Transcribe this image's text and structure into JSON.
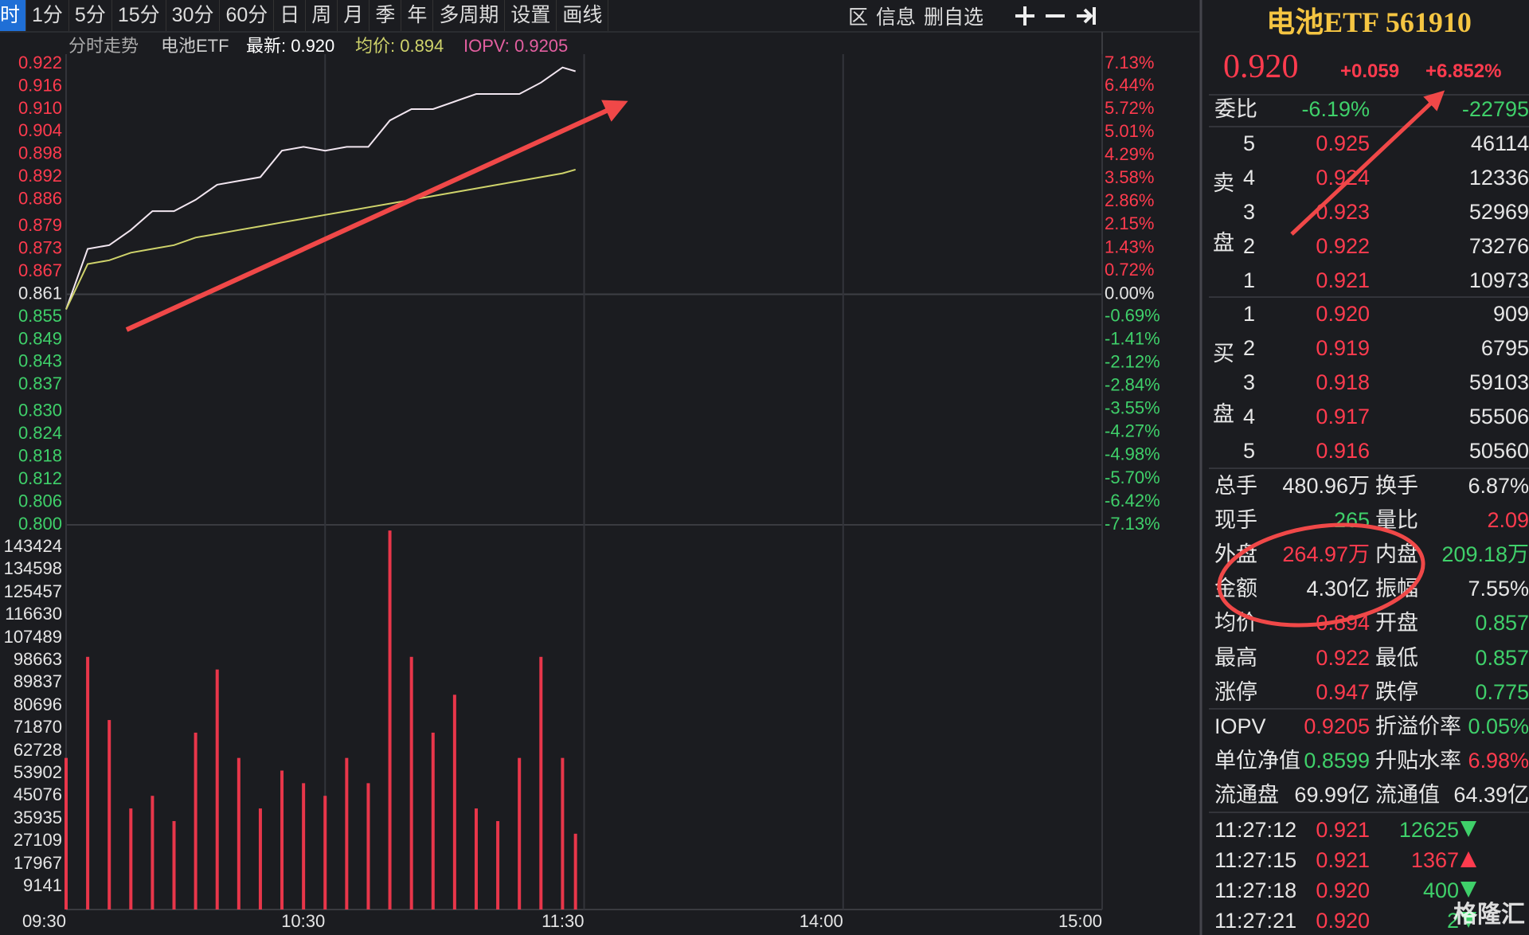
{
  "toolbar": {
    "left": [
      "时",
      "1分",
      "5分",
      "15分",
      "30分",
      "60分",
      "日",
      "周",
      "月",
      "季",
      "年",
      "多周期",
      "设置",
      "画线"
    ],
    "right": [
      "区",
      "信息",
      "删自选"
    ]
  },
  "chart_data": [
    {
      "type": "line",
      "title": "分时走势",
      "subtitle": "电池ETF",
      "annotations": [
        "IOPV: 0.9205"
      ],
      "x": [
        "09:30",
        "09:35",
        "09:40",
        "09:45",
        "09:50",
        "09:55",
        "10:00",
        "10:05",
        "10:10",
        "10:15",
        "10:20",
        "10:25",
        "10:30",
        "10:35",
        "10:40",
        "10:45",
        "10:50",
        "10:55",
        "11:00",
        "11:05",
        "11:10",
        "11:15",
        "11:20",
        "11:25",
        "11:28"
      ],
      "series": [
        {
          "name": "最新: 0.920",
          "color": "#f2e6f0",
          "values": [
            0.857,
            0.873,
            0.874,
            0.878,
            0.883,
            0.883,
            0.886,
            0.89,
            0.891,
            0.892,
            0.899,
            0.9,
            0.899,
            0.9,
            0.9,
            0.907,
            0.91,
            0.91,
            0.912,
            0.914,
            0.914,
            0.914,
            0.917,
            0.921,
            0.92
          ]
        },
        {
          "name": "均价: 0.894",
          "color": "#cfd36b",
          "values": [
            0.857,
            0.869,
            0.87,
            0.872,
            0.873,
            0.874,
            0.876,
            0.877,
            0.878,
            0.879,
            0.88,
            0.881,
            0.882,
            0.883,
            0.884,
            0.885,
            0.886,
            0.887,
            0.888,
            0.889,
            0.89,
            0.891,
            0.892,
            0.893,
            0.894
          ]
        }
      ],
      "xlim": [
        "09:30",
        "15:00"
      ],
      "grid": true,
      "ylim": [
        0.8,
        0.922
      ],
      "yticks": [
        {
          "value": 0.922,
          "label": "0.922"
        },
        {
          "value": 0.916,
          "label": "0.916"
        },
        {
          "value": 0.91,
          "label": "0.910"
        },
        {
          "value": 0.904,
          "label": "0.904"
        },
        {
          "value": 0.898,
          "label": "0.898"
        },
        {
          "value": 0.892,
          "label": "0.892"
        },
        {
          "value": 0.886,
          "label": "0.886"
        },
        {
          "value": 0.879,
          "label": "0.879"
        },
        {
          "value": 0.873,
          "label": "0.873"
        },
        {
          "value": 0.867,
          "label": "0.867"
        },
        {
          "value": 0.861,
          "label": "0.861"
        },
        {
          "value": 0.855,
          "label": "0.855"
        },
        {
          "value": 0.849,
          "label": "0.849"
        },
        {
          "value": 0.843,
          "label": "0.843"
        },
        {
          "value": 0.837,
          "label": "0.837"
        },
        {
          "value": 0.83,
          "label": "0.830"
        },
        {
          "value": 0.824,
          "label": "0.824"
        },
        {
          "value": 0.818,
          "label": "0.818"
        },
        {
          "value": 0.812,
          "label": "0.812"
        },
        {
          "value": 0.806,
          "label": "0.806"
        },
        {
          "value": 0.8,
          "label": "0.800"
        }
      ],
      "y2lim": [
        -7.13,
        7.13
      ],
      "y2ticks": [
        {
          "value": 7.13,
          "label": "7.13%"
        },
        {
          "value": 6.44,
          "label": "6.44%"
        },
        {
          "value": 5.72,
          "label": "5.72%"
        },
        {
          "value": 5.01,
          "label": "5.01%"
        },
        {
          "value": 4.29,
          "label": "4.29%"
        },
        {
          "value": 3.58,
          "label": "3.58%"
        },
        {
          "value": 2.86,
          "label": "2.86%"
        },
        {
          "value": 2.15,
          "label": "2.15%"
        },
        {
          "value": 1.43,
          "label": "1.43%"
        },
        {
          "value": 0.72,
          "label": "0.72%"
        },
        {
          "value": 0,
          "label": "0.00%"
        },
        {
          "value": -0.69,
          "label": "-0.69%"
        },
        {
          "value": -1.41,
          "label": "-1.41%"
        },
        {
          "value": -2.12,
          "label": "-2.12%"
        },
        {
          "value": -2.84,
          "label": "-2.84%"
        },
        {
          "value": -3.55,
          "label": "-3.55%"
        },
        {
          "value": -4.27,
          "label": "-4.27%"
        },
        {
          "value": -4.98,
          "label": "-4.98%"
        },
        {
          "value": -5.7,
          "label": "-5.70%"
        },
        {
          "value": -6.42,
          "label": "-6.42%"
        },
        {
          "value": -7.13,
          "label": "-7.13%"
        }
      ]
    },
    {
      "type": "bar",
      "color": "#e8364a",
      "x": [
        "09:30",
        "09:35",
        "09:40",
        "09:45",
        "09:50",
        "09:55",
        "10:00",
        "10:05",
        "10:10",
        "10:15",
        "10:20",
        "10:25",
        "10:30",
        "10:35",
        "10:40",
        "10:45",
        "10:50",
        "10:55",
        "11:00",
        "11:05",
        "11:10",
        "11:15",
        "11:20",
        "11:25",
        "11:28"
      ],
      "values": [
        60000,
        100000,
        75000,
        40000,
        45000,
        35000,
        70000,
        95000,
        60000,
        40000,
        55000,
        50000,
        45000,
        60000,
        50000,
        150000,
        100000,
        70000,
        85000,
        40000,
        35000,
        60000,
        100000,
        60000,
        30000
      ],
      "xlim": [
        "09:30",
        "15:00"
      ],
      "xticks": [
        "09:30",
        "10:30",
        "11:30",
        "14:00",
        "15:00"
      ],
      "ylim": [
        0,
        152250
      ],
      "yticks": [
        143424,
        134598,
        125457,
        116630,
        107489,
        98663,
        89837,
        80696,
        71870,
        62728,
        53902,
        45076,
        35935,
        27109,
        17967,
        9141
      ]
    }
  ],
  "quote": {
    "name": "电池ETF 561910",
    "price": "0.920",
    "change": "+0.059",
    "change_pct": "+6.852%",
    "ratio": [
      "委比",
      "-6.19%",
      "-22795"
    ],
    "sell_side": [
      "卖",
      "盘"
    ],
    "buy_side": [
      "买",
      "盘"
    ],
    "asks": [
      [
        "5",
        "0.925",
        "46114"
      ],
      [
        "4",
        "0.924",
        "12336"
      ],
      [
        "3",
        "0.923",
        "52969"
      ],
      [
        "2",
        "0.922",
        "73276"
      ],
      [
        "1",
        "0.921",
        "10973"
      ]
    ],
    "bids": [
      [
        "1",
        "0.920",
        "909"
      ],
      [
        "2",
        "0.919",
        "6795"
      ],
      [
        "3",
        "0.918",
        "59103"
      ],
      [
        "4",
        "0.917",
        "55506"
      ],
      [
        "5",
        "0.916",
        "50560"
      ]
    ],
    "stats": [
      [
        "总手",
        "480.96万",
        "换手",
        "6.87%"
      ],
      [
        "现手",
        "265",
        "量比",
        "2.09"
      ],
      [
        "外盘",
        "264.97万",
        "内盘",
        "209.18万"
      ],
      [
        "金额",
        "4.30亿",
        "振幅",
        "7.55%"
      ],
      [
        "均价",
        "0.894",
        "开盘",
        "0.857"
      ],
      [
        "最高",
        "0.922",
        "最低",
        "0.857"
      ],
      [
        "涨停",
        "0.947",
        "跌停",
        "0.775"
      ],
      [
        "IOPV",
        "0.9205",
        "折溢价率",
        "0.05%"
      ],
      [
        "单位净值",
        "0.8599",
        "升贴水率",
        "6.98%"
      ],
      [
        "流通盘",
        "69.99亿",
        "流通值",
        "64.39亿"
      ]
    ],
    "trades": [
      {
        "time": "11:27:12",
        "price": "0.921",
        "volume": "12625",
        "dir": "down"
      },
      {
        "time": "11:27:15",
        "price": "0.921",
        "volume": "1367",
        "dir": "up"
      },
      {
        "time": "11:27:18",
        "price": "0.920",
        "volume": "400",
        "dir": "down"
      },
      {
        "time": "11:27:21",
        "price": "0.920",
        "volume": "2",
        "dir": "down"
      }
    ]
  },
  "watermark": "格隆汇"
}
